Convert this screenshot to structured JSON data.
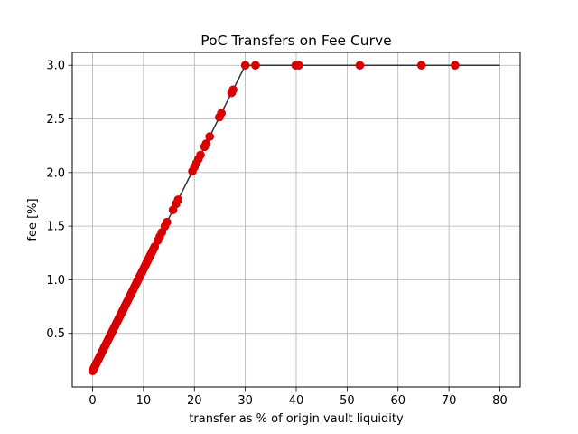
{
  "chart_data": {
    "type": "line",
    "title": "PoC Transfers on Fee Curve",
    "xlabel": "transfer as % of origin vault liquidity",
    "ylabel": "fee [%]",
    "xlim": [
      -4,
      84
    ],
    "ylim": [
      0.0,
      3.12
    ],
    "xticks": [
      0,
      10,
      20,
      30,
      40,
      50,
      60,
      70,
      80
    ],
    "yticks": [
      0.5,
      1.0,
      1.5,
      2.0,
      2.5,
      3.0
    ],
    "xtick_labels": [
      "0",
      "10",
      "20",
      "30",
      "40",
      "50",
      "60",
      "70",
      "80"
    ],
    "ytick_labels": [
      "0.5",
      "1.0",
      "1.5",
      "2.0",
      "2.5",
      "3.0"
    ],
    "grid": true,
    "colors": {
      "curve": "#333333",
      "points": "#dd0000"
    },
    "series": [
      {
        "kind": "line",
        "x": [
          0,
          30,
          80
        ],
        "y": [
          0.15,
          3.0,
          3.0
        ]
      },
      {
        "kind": "scatter",
        "x": [
          0,
          0.2,
          0.4,
          0.6,
          0.8,
          1.0,
          1.2,
          1.4,
          1.6,
          1.8,
          2.0,
          2.2,
          2.4,
          2.6,
          2.8,
          3.0,
          3.2,
          3.4,
          3.6,
          3.8,
          4.0,
          4.2,
          4.4,
          4.6,
          4.8,
          5.0,
          5.2,
          5.4,
          5.6,
          5.8,
          6.0,
          6.2,
          6.4,
          6.6,
          6.8,
          7.0,
          7.2,
          7.4,
          7.6,
          7.8,
          8.0,
          8.2,
          8.4,
          8.6,
          8.8,
          9.0,
          9.2,
          9.4,
          9.6,
          9.8,
          10.0,
          10.2,
          10.4,
          10.6,
          10.8,
          11.0,
          11.2,
          11.4,
          11.6,
          11.8,
          12.0,
          12.2,
          12.8,
          13.2,
          13.6,
          14.2,
          14.6,
          15.8,
          16.4,
          16.8,
          19.6,
          20.0,
          20.4,
          20.8,
          21.2,
          22.0,
          22.3,
          23.0,
          24.9,
          25.3,
          27.3,
          27.6,
          30.0,
          32.0,
          39.9,
          40.5,
          52.5,
          64.6,
          71.2
        ],
        "y": [
          0.15,
          0.169,
          0.188,
          0.207,
          0.226,
          0.245,
          0.264,
          0.283,
          0.302,
          0.321,
          0.34,
          0.359,
          0.378,
          0.397,
          0.416,
          0.435,
          0.454,
          0.473,
          0.492,
          0.511,
          0.53,
          0.549,
          0.568,
          0.587,
          0.606,
          0.625,
          0.644,
          0.663,
          0.682,
          0.701,
          0.72,
          0.739,
          0.758,
          0.777,
          0.796,
          0.815,
          0.834,
          0.853,
          0.872,
          0.891,
          0.91,
          0.929,
          0.948,
          0.967,
          0.986,
          1.005,
          1.024,
          1.043,
          1.062,
          1.081,
          1.1,
          1.119,
          1.138,
          1.157,
          1.176,
          1.195,
          1.214,
          1.233,
          1.252,
          1.271,
          1.29,
          1.309,
          1.366,
          1.404,
          1.442,
          1.499,
          1.537,
          1.651,
          1.708,
          1.746,
          2.012,
          2.05,
          2.088,
          2.126,
          2.164,
          2.24,
          2.269,
          2.335,
          2.516,
          2.554,
          2.744,
          2.772,
          3.0,
          3.0,
          3.0,
          3.0,
          3.0,
          3.0,
          3.0
        ]
      }
    ]
  }
}
